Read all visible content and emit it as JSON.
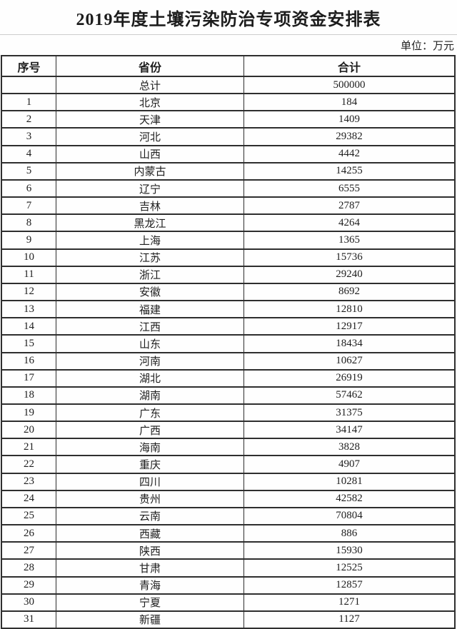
{
  "title": "2019年度土壤污染防治专项资金安排表",
  "unit_label": "单位：万元",
  "colors": {
    "table_border": "#2e2e2e",
    "title_divider": "#cccccc",
    "background": "#fefefe",
    "text": "#1e1e1e"
  },
  "table": {
    "headers": [
      "序号",
      "省份",
      "合计"
    ],
    "rows": [
      [
        "",
        "总计",
        "500000"
      ],
      [
        "1",
        "北京",
        "184"
      ],
      [
        "2",
        "天津",
        "1409"
      ],
      [
        "3",
        "河北",
        "29382"
      ],
      [
        "4",
        "山西",
        "4442"
      ],
      [
        "5",
        "内蒙古",
        "14255"
      ],
      [
        "6",
        "辽宁",
        "6555"
      ],
      [
        "7",
        "吉林",
        "2787"
      ],
      [
        "8",
        "黑龙江",
        "4264"
      ],
      [
        "9",
        "上海",
        "1365"
      ],
      [
        "10",
        "江苏",
        "15736"
      ],
      [
        "11",
        "浙江",
        "29240"
      ],
      [
        "12",
        "安徽",
        "8692"
      ],
      [
        "13",
        "福建",
        "12810"
      ],
      [
        "14",
        "江西",
        "12917"
      ],
      [
        "15",
        "山东",
        "18434"
      ],
      [
        "16",
        "河南",
        "10627"
      ],
      [
        "17",
        "湖北",
        "26919"
      ],
      [
        "18",
        "湖南",
        "57462"
      ],
      [
        "19",
        "广东",
        "31375"
      ],
      [
        "20",
        "广西",
        "34147"
      ],
      [
        "21",
        "海南",
        "3828"
      ],
      [
        "22",
        "重庆",
        "4907"
      ],
      [
        "23",
        "四川",
        "10281"
      ],
      [
        "24",
        "贵州",
        "42582"
      ],
      [
        "25",
        "云南",
        "70804"
      ],
      [
        "26",
        "西藏",
        "886"
      ],
      [
        "27",
        "陕西",
        "15930"
      ],
      [
        "28",
        "甘肃",
        "12525"
      ],
      [
        "29",
        "青海",
        "12857"
      ],
      [
        "30",
        "宁夏",
        "1271"
      ],
      [
        "31",
        "新疆",
        "1127"
      ]
    ]
  }
}
